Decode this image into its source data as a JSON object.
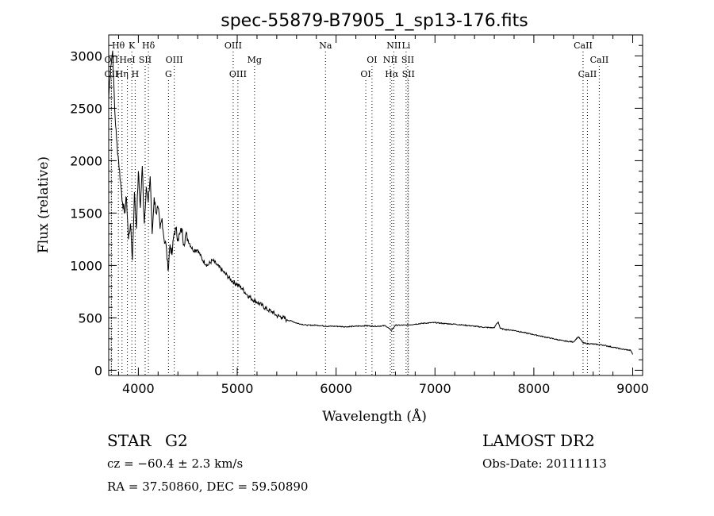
{
  "chart_data": {
    "type": "line",
    "title": "spec-55879-B7905_1_sp13-176.fits",
    "xlabel": "Wavelength (Å)",
    "ylabel": "Flux (relative)",
    "xlim": [
      3700,
      9100
    ],
    "ylim": [
      -50,
      3200
    ],
    "xticks": [
      4000,
      5000,
      6000,
      7000,
      8000,
      9000
    ],
    "yticks": [
      0,
      500,
      1000,
      1500,
      2000,
      2500,
      3000
    ],
    "series": [
      {
        "name": "flux",
        "x": [
          3700,
          3720,
          3740,
          3760,
          3780,
          3800,
          3820,
          3840,
          3860,
          3880,
          3900,
          3920,
          3940,
          3960,
          3980,
          4000,
          4020,
          4040,
          4060,
          4080,
          4100,
          4120,
          4140,
          4160,
          4180,
          4200,
          4220,
          4240,
          4260,
          4280,
          4300,
          4320,
          4340,
          4360,
          4380,
          4400,
          4420,
          4440,
          4460,
          4480,
          4500,
          4550,
          4600,
          4650,
          4700,
          4750,
          4800,
          4850,
          4900,
          4950,
          5000,
          5050,
          5100,
          5150,
          5200,
          5250,
          5300,
          5350,
          5400,
          5450,
          5500,
          5550,
          5600,
          5650,
          5700,
          5750,
          5800,
          5850,
          5900,
          5950,
          6000,
          6100,
          6200,
          6300,
          6400,
          6500,
          6560,
          6600,
          6700,
          6800,
          6900,
          7000,
          7100,
          7200,
          7300,
          7400,
          7500,
          7600,
          7620,
          7640,
          7660,
          7700,
          7800,
          7900,
          8000,
          8100,
          8200,
          8300,
          8400,
          8450,
          8500,
          8540,
          8600,
          8660,
          8700,
          8800,
          8900,
          8980,
          9000
        ],
        "y": [
          2600,
          2900,
          3050,
          2500,
          2200,
          2000,
          1800,
          1600,
          1500,
          1650,
          1250,
          1400,
          1050,
          1700,
          1350,
          1900,
          1550,
          1950,
          1400,
          1750,
          1600,
          1850,
          1300,
          1650,
          1500,
          1550,
          1350,
          1450,
          1250,
          1200,
          950,
          1200,
          1100,
          1300,
          1350,
          1250,
          1300,
          1350,
          1200,
          1300,
          1250,
          1150,
          1150,
          1050,
          1000,
          1050,
          1000,
          950,
          900,
          850,
          820,
          780,
          720,
          680,
          650,
          620,
          580,
          560,
          520,
          510,
          480,
          470,
          450,
          440,
          430,
          430,
          430,
          425,
          420,
          420,
          420,
          415,
          420,
          425,
          420,
          425,
          380,
          430,
          430,
          440,
          450,
          455,
          445,
          440,
          430,
          420,
          410,
          405,
          440,
          460,
          400,
          390,
          380,
          360,
          340,
          320,
          300,
          280,
          270,
          320,
          260,
          255,
          250,
          245,
          240,
          220,
          200,
          190,
          150
        ]
      }
    ],
    "lines": [
      {
        "label": "Hθ",
        "x": 3798,
        "row": 1
      },
      {
        "label": "K",
        "x": 3934,
        "row": 1
      },
      {
        "label": "Hδ",
        "x": 4102,
        "row": 1
      },
      {
        "label": "OII",
        "x": 3727,
        "row": 2
      },
      {
        "label": "HeI",
        "x": 3889,
        "row": 2
      },
      {
        "label": "SII",
        "x": 4069,
        "row": 2
      },
      {
        "label": "OIII",
        "x": 4363,
        "row": 2
      },
      {
        "label": "OII",
        "x": 3727,
        "row": 3
      },
      {
        "label": "Hη",
        "x": 3835,
        "row": 3
      },
      {
        "label": "H",
        "x": 3968,
        "row": 3
      },
      {
        "label": "G",
        "x": 4305,
        "row": 3
      },
      {
        "label": "OIII",
        "x": 4959,
        "row": 1
      },
      {
        "label": "Mg",
        "x": 5175,
        "row": 2
      },
      {
        "label": "OIII",
        "x": 5007,
        "row": 3
      },
      {
        "label": "Na",
        "x": 5893,
        "row": 1
      },
      {
        "label": "OI",
        "x": 6363,
        "row": 2
      },
      {
        "label": "OI",
        "x": 6300,
        "row": 3
      },
      {
        "label": "NII",
        "x": 6584,
        "row": 1
      },
      {
        "label": "Li",
        "x": 6708,
        "row": 1
      },
      {
        "label": "NII",
        "x": 6548,
        "row": 2
      },
      {
        "label": "SII",
        "x": 6725,
        "row": 2
      },
      {
        "label": "Hα",
        "x": 6563,
        "row": 3
      },
      {
        "label": "SII",
        "x": 6731,
        "row": 3
      },
      {
        "label": "CaII",
        "x": 8498,
        "row": 1
      },
      {
        "label": "CaII",
        "x": 8662,
        "row": 2
      },
      {
        "label": "CaII",
        "x": 8542,
        "row": 3
      }
    ]
  },
  "info": {
    "class": "STAR",
    "subclass": "G2",
    "survey": "LAMOST DR2",
    "cz": "cz = −60.4 ± 2.3 km/s",
    "obs_date": "Obs-Date: 20111113",
    "coords": "RA =  37.50860, DEC =  59.50890"
  }
}
